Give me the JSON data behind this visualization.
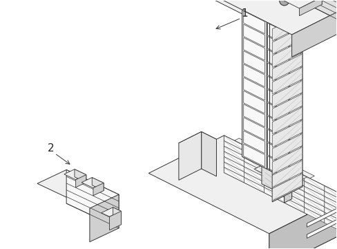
{
  "background_color": "#ffffff",
  "line_color": "#333333",
  "figsize": [
    4.89,
    3.6
  ],
  "dpi": 100,
  "colors": {
    "top_face": "#f0f0f0",
    "left_face": "#e0e0e0",
    "right_face": "#d0d0d0",
    "dark_face": "#c0c0c0",
    "white_face": "#f8f8f8",
    "hatch_face": "#e8e8e8",
    "very_light": "#fafafa"
  }
}
